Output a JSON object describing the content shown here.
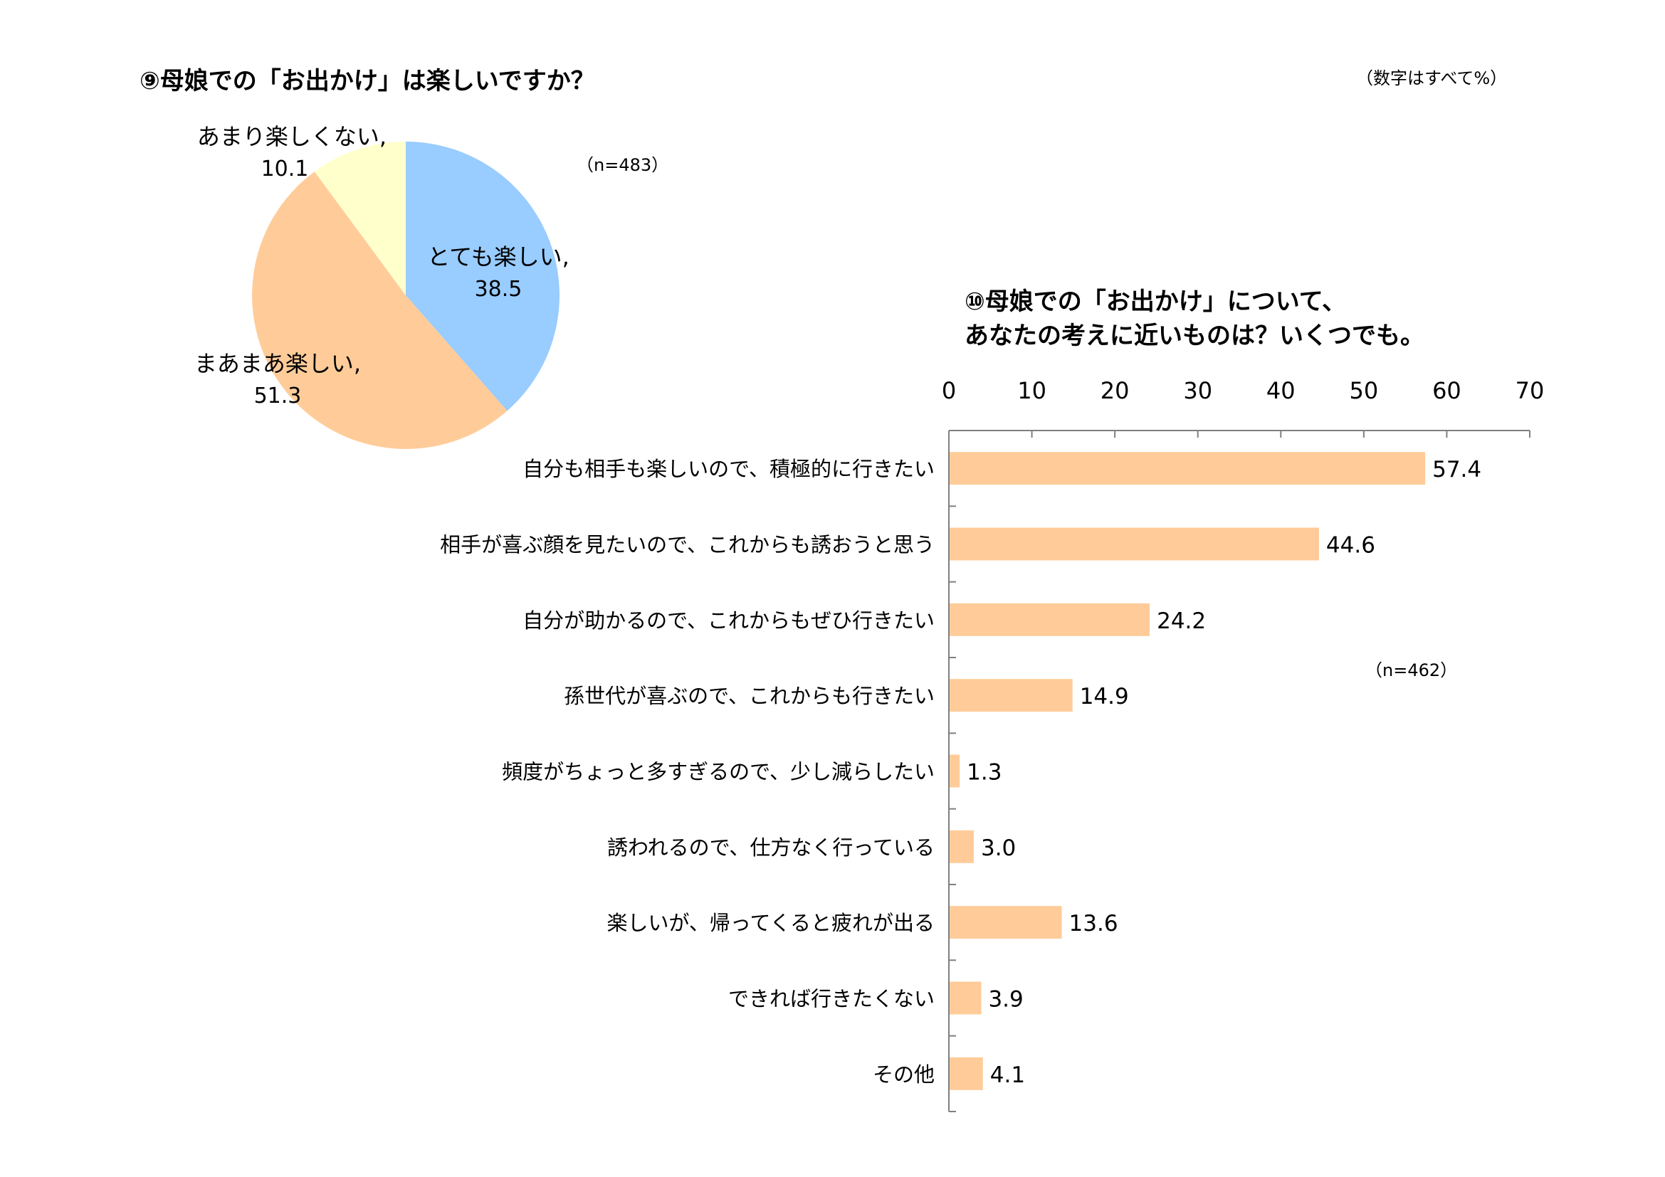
{
  "unit_note": "（数字はすべて%）",
  "chart_data": [
    {
      "type": "pie",
      "title": "⑨母娘での「お出かけ」は楽しいですか？",
      "n_label": "（n=483）",
      "slices": [
        {
          "label": "とても楽しい,",
          "value": 38.5,
          "value_label": "38.5",
          "color": "#99ccff"
        },
        {
          "label": "まあまあ楽しい,",
          "value": 51.3,
          "value_label": "51.3",
          "color": "#ffcc99"
        },
        {
          "label": "あまり楽しくない,",
          "value": 10.1,
          "value_label": "10.1",
          "color": "#ffffcc"
        }
      ]
    },
    {
      "type": "bar",
      "orientation": "horizontal",
      "title_lines": [
        "⑩母娘での「お出かけ」について、",
        "あなたの考えに近いものは？いくつでも。"
      ],
      "n_label": "（n=462）",
      "xlim": [
        0,
        70
      ],
      "ticks": [
        "0",
        "10",
        "20",
        "30",
        "40",
        "50",
        "60",
        "70"
      ],
      "tick_values": [
        0,
        10,
        20,
        30,
        40,
        50,
        60,
        70
      ],
      "bar_color": "#ffcc99",
      "categories": [
        "自分も相手も楽しいので、積極的に行きたい",
        "相手が喜ぶ顔を見たいので、これからも誘おうと思う",
        "自分が助かるので、これからもぜひ行きたい",
        "孫世代が喜ぶので、これからも行きたい",
        "頻度がちょっと多すぎるので、少し減らしたい",
        "誘われるので、仕方なく行っている",
        "楽しいが、帰ってくると疲れが出る",
        "できれば行きたくない",
        "その他"
      ],
      "values": [
        57.4,
        44.6,
        24.2,
        14.9,
        1.3,
        3.0,
        13.6,
        3.9,
        4.1
      ],
      "value_labels": [
        "57.4",
        "44.6",
        "24.2",
        "14.9",
        "1.3",
        "3.0",
        "13.6",
        "3.9",
        "4.1"
      ]
    }
  ]
}
